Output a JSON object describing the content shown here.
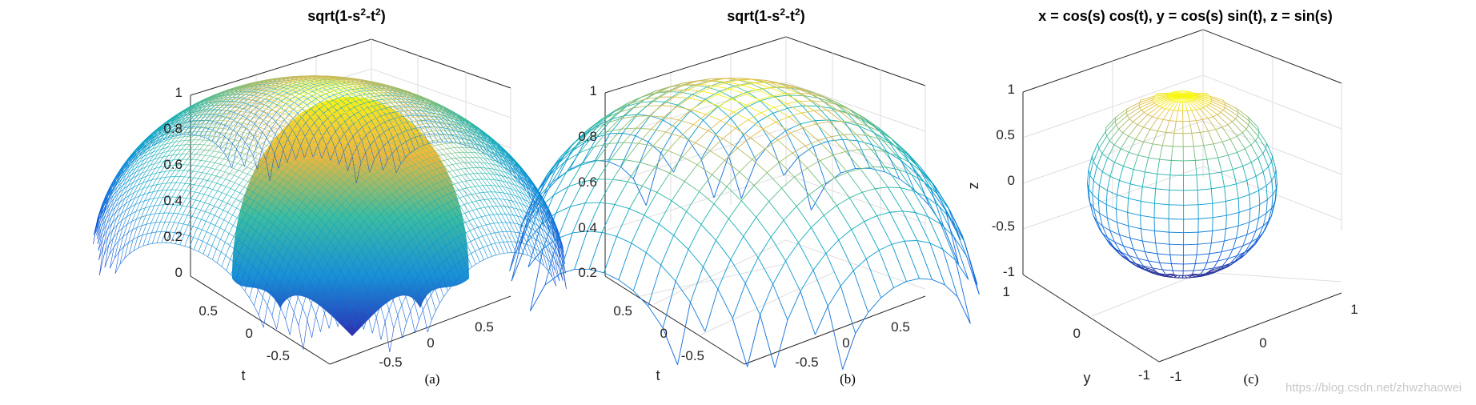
{
  "watermark": "https://blog.csdn.net/zhwzhaowei",
  "chart_data": [
    {
      "type": "surface-mesh",
      "caption": "(a)",
      "title": {
        "base": "sqrt(1-s",
        "sup1": "2",
        "mid": "-t",
        "sup2": "2",
        "end": ")"
      },
      "xlabel": "",
      "ylabel": "t",
      "zlabel": "",
      "x_ticks": [
        "-0.5",
        "0",
        "0.5"
      ],
      "y_ticks": [
        "0.5",
        "0",
        "-0.5"
      ],
      "z_ticks": [
        "0",
        "0.2",
        "0.4",
        "0.6",
        "0.8",
        "1"
      ],
      "xlim": [
        -0.9,
        0.9
      ],
      "ylim": [
        -0.9,
        0.9
      ],
      "zlim": [
        0,
        1
      ],
      "mesh_density": "dense",
      "colormap": "parula",
      "grid": true
    },
    {
      "type": "surface-mesh",
      "caption": "(b)",
      "title": {
        "base": "sqrt(1-s",
        "sup1": "2",
        "mid": "-t",
        "sup2": "2",
        "end": ")"
      },
      "xlabel": "",
      "ylabel": "t",
      "zlabel": "",
      "x_ticks": [
        "-0.5",
        "0",
        "0.5"
      ],
      "y_ticks": [
        "0.5",
        "0",
        "-0.5"
      ],
      "z_ticks": [
        "0.2",
        "0.4",
        "0.6",
        "0.8",
        "1"
      ],
      "xlim": [
        -0.9,
        0.9
      ],
      "ylim": [
        -0.9,
        0.9
      ],
      "zlim": [
        0.2,
        1
      ],
      "mesh_density": "coarse",
      "colormap": "parula",
      "grid": true
    },
    {
      "type": "parametric-surface-mesh",
      "caption": "(c)",
      "title": "x = cos(s) cos(t), y = cos(s) sin(t), z = sin(s)",
      "xlabel": "",
      "ylabel": "y",
      "zlabel": "z",
      "x_ticks": [
        "-1",
        "0",
        "1"
      ],
      "y_ticks": [
        "1",
        "0",
        "-1"
      ],
      "z_ticks": [
        "-1",
        "-0.5",
        "0",
        "0.5",
        "1"
      ],
      "xlim": [
        -1,
        1
      ],
      "ylim": [
        -1,
        1
      ],
      "zlim": [
        -1,
        1
      ],
      "mesh_density": "coarse",
      "colormap": "parula",
      "grid": true
    }
  ]
}
